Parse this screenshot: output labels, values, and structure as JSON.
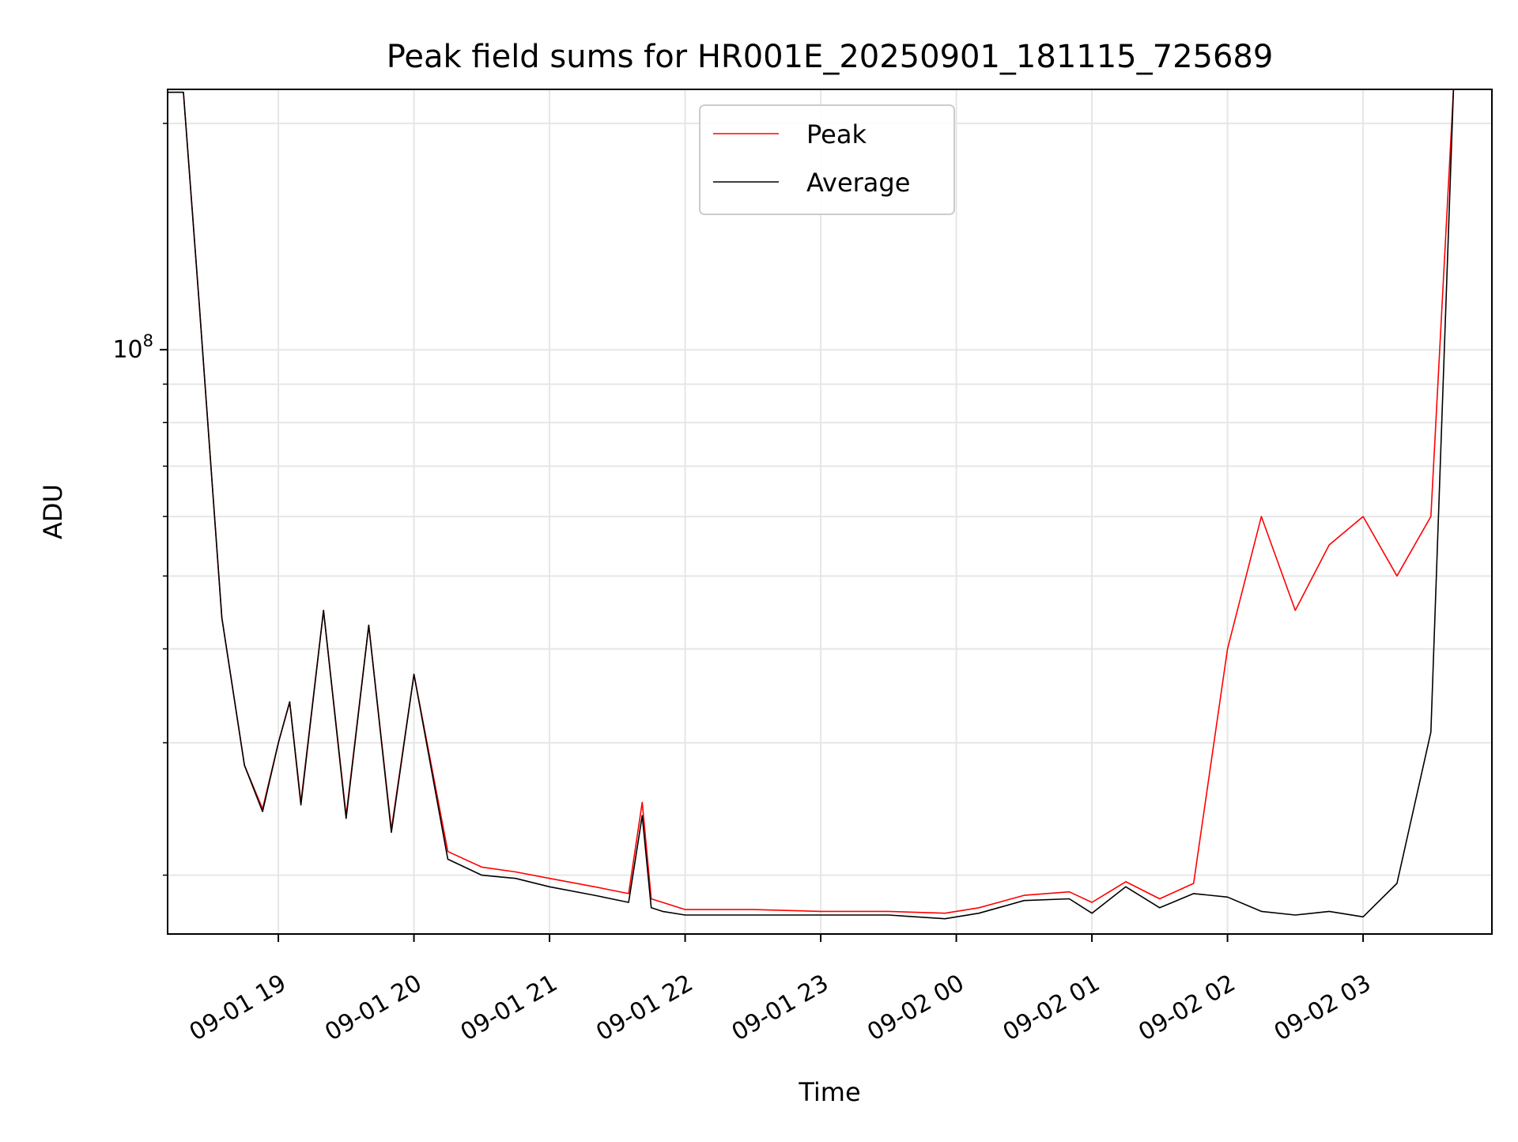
{
  "chart_data": {
    "type": "line",
    "title": "Peak field sums for HR001E_20250901_181115_725689",
    "xlabel": "Time",
    "ylabel": "ADU",
    "y_scale": "log",
    "ylim": [
      16700000,
      222000000
    ],
    "xlim": [
      "2025-09-01 18:11",
      "2025-09-02 03:57"
    ],
    "x_ticks": [
      "09-01 19",
      "09-01 20",
      "09-01 21",
      "09-01 22",
      "09-01 23",
      "09-02 00",
      "09-02 01",
      "09-02 02",
      "09-02 03"
    ],
    "y_ticks": [
      "10^8"
    ],
    "y_major_tick_value": 100000000,
    "y_minor_tick_values": [
      20000000,
      30000000,
      40000000,
      50000000,
      60000000,
      70000000,
      80000000,
      90000000,
      200000000
    ],
    "grid": true,
    "legend_position": "top-center",
    "colors": {
      "Peak": "#ff0000",
      "Average": "#000000"
    },
    "series": [
      {
        "name": "Peak",
        "x": [
          "2025-09-01 18:11",
          "2025-09-01 18:18",
          "2025-09-01 18:25",
          "2025-09-01 18:35",
          "2025-09-01 18:45",
          "2025-09-01 18:53",
          "2025-09-01 19:00",
          "2025-09-01 19:05",
          "2025-09-01 19:10",
          "2025-09-01 19:20",
          "2025-09-01 19:30",
          "2025-09-01 19:40",
          "2025-09-01 19:50",
          "2025-09-01 20:00",
          "2025-09-01 20:15",
          "2025-09-01 20:30",
          "2025-09-01 20:45",
          "2025-09-01 21:00",
          "2025-09-01 21:20",
          "2025-09-01 21:35",
          "2025-09-01 21:41",
          "2025-09-01 21:45",
          "2025-09-01 21:50",
          "2025-09-01 22:00",
          "2025-09-01 22:30",
          "2025-09-01 23:00",
          "2025-09-01 23:30",
          "2025-09-01 23:55",
          "2025-09-02 00:10",
          "2025-09-02 00:30",
          "2025-09-02 00:50",
          "2025-09-02 01:00",
          "2025-09-02 01:15",
          "2025-09-02 01:30",
          "2025-09-02 01:45",
          "2025-09-02 02:00",
          "2025-09-02 02:15",
          "2025-09-02 02:30",
          "2025-09-02 02:45",
          "2025-09-02 03:00",
          "2025-09-02 03:15",
          "2025-09-02 03:30",
          "2025-09-02 03:40"
        ],
        "y": [
          220000000,
          220000000,
          115000000,
          44000000,
          28000000,
          24500000,
          30000000,
          34000000,
          25000000,
          45000000,
          24000000,
          43000000,
          23000000,
          37000000,
          21500000,
          20500000,
          20200000,
          19800000,
          19300000,
          18900000,
          25000000,
          18600000,
          18400000,
          18000000,
          18000000,
          17900000,
          17900000,
          17800000,
          18100000,
          18800000,
          19000000,
          18400000,
          19600000,
          18600000,
          19500000,
          40000000,
          60000000,
          45000000,
          55000000,
          60000000,
          50000000,
          60000000,
          222000000
        ]
      },
      {
        "name": "Average",
        "x": [
          "2025-09-01 18:11",
          "2025-09-01 18:18",
          "2025-09-01 18:25",
          "2025-09-01 18:35",
          "2025-09-01 18:45",
          "2025-09-01 18:53",
          "2025-09-01 19:00",
          "2025-09-01 19:05",
          "2025-09-01 19:10",
          "2025-09-01 19:20",
          "2025-09-01 19:30",
          "2025-09-01 19:40",
          "2025-09-01 19:50",
          "2025-09-01 20:00",
          "2025-09-01 20:15",
          "2025-09-01 20:30",
          "2025-09-01 20:45",
          "2025-09-01 21:00",
          "2025-09-01 21:20",
          "2025-09-01 21:35",
          "2025-09-01 21:41",
          "2025-09-01 21:45",
          "2025-09-01 21:50",
          "2025-09-01 22:00",
          "2025-09-01 22:30",
          "2025-09-01 23:00",
          "2025-09-01 23:30",
          "2025-09-01 23:55",
          "2025-09-02 00:10",
          "2025-09-02 00:30",
          "2025-09-02 00:50",
          "2025-09-02 01:00",
          "2025-09-02 01:15",
          "2025-09-02 01:30",
          "2025-09-02 01:45",
          "2025-09-02 02:00",
          "2025-09-02 02:15",
          "2025-09-02 02:30",
          "2025-09-02 02:45",
          "2025-09-02 03:00",
          "2025-09-02 03:15",
          "2025-09-02 03:30",
          "2025-09-02 03:40"
        ],
        "y": [
          220000000,
          220000000,
          115000000,
          44000000,
          28000000,
          24300000,
          30000000,
          34000000,
          24800000,
          45000000,
          23800000,
          43000000,
          22800000,
          37000000,
          21000000,
          20000000,
          19800000,
          19300000,
          18800000,
          18400000,
          24000000,
          18100000,
          17900000,
          17700000,
          17700000,
          17700000,
          17700000,
          17500000,
          17800000,
          18500000,
          18600000,
          17800000,
          19300000,
          18100000,
          18900000,
          18700000,
          17900000,
          17700000,
          17900000,
          17600000,
          19500000,
          31000000,
          222000000
        ]
      }
    ],
    "legend": [
      "Peak",
      "Average"
    ]
  }
}
